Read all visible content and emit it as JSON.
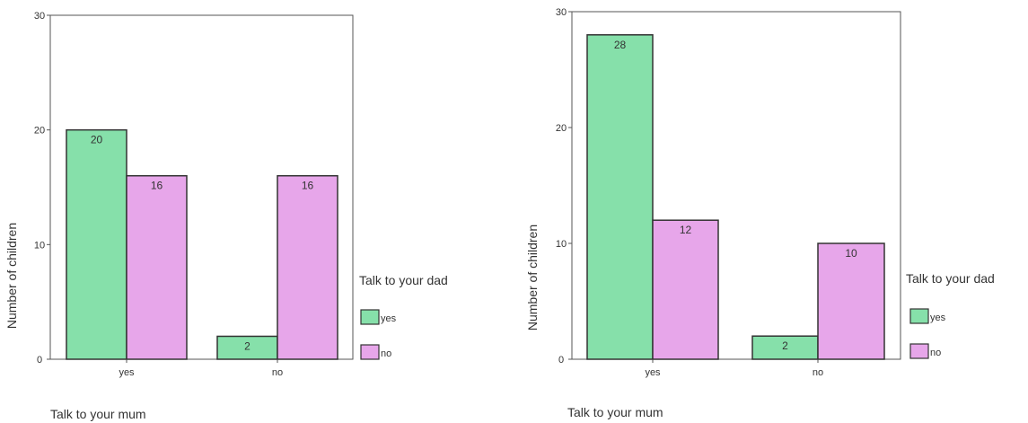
{
  "chart_data": [
    {
      "type": "bar",
      "categories": [
        "yes",
        "no"
      ],
      "series": [
        {
          "name": "yes",
          "values": [
            20,
            2
          ],
          "color": "#86e0aa"
        },
        {
          "name": "no",
          "values": [
            16,
            16
          ],
          "color": "#e7a6ea"
        }
      ],
      "data_labels": [
        [
          "20",
          "2"
        ],
        [
          "16",
          "16"
        ]
      ],
      "xlabel": "Talk to your mum",
      "ylabel": "Number of children",
      "ylim": [
        0,
        30
      ],
      "yticks": [
        0,
        10,
        20,
        30
      ],
      "legend_title": "Talk to your dad",
      "legend_position": "right",
      "grid": false
    },
    {
      "type": "bar",
      "categories": [
        "yes",
        "no"
      ],
      "series": [
        {
          "name": "yes",
          "values": [
            28,
            2
          ],
          "color": "#86e0aa"
        },
        {
          "name": "no",
          "values": [
            12,
            10
          ],
          "color": "#e7a6ea"
        }
      ],
      "data_labels": [
        [
          "28",
          "2"
        ],
        [
          "12",
          "10"
        ]
      ],
      "xlabel": "Talk to your mum",
      "ylabel": "Number of children",
      "ylim": [
        0,
        30
      ],
      "yticks": [
        0,
        10,
        20,
        30
      ],
      "legend_title": "Talk to your dad",
      "legend_position": "right",
      "grid": false
    }
  ]
}
